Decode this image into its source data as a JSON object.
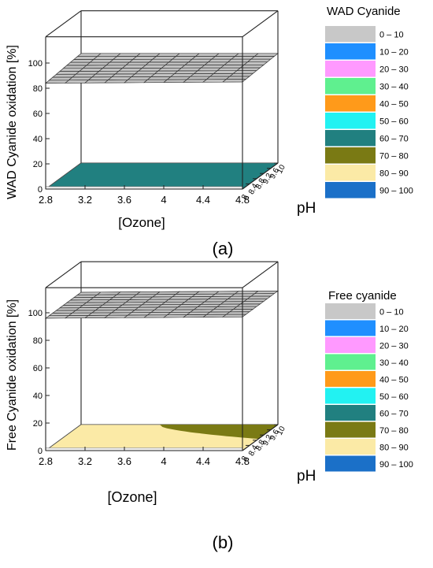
{
  "legend_colors": [
    "#c8c8c8",
    "#1f8fff",
    "#ff99ff",
    "#5ff08f",
    "#ff9a1a",
    "#22f2f2",
    "#218080",
    "#7a7a14",
    "#fbeaa6",
    "#1b70c8"
  ],
  "chart_data": [
    {
      "type": "3d-surface",
      "panel_label": "(a)",
      "zlabel": "WAD Cyanide oxidation [%]",
      "xlabel": "[Ozone]",
      "ylabel": "pH",
      "x_ticks": [
        "2.8",
        "3.2",
        "3.6",
        "4",
        "4.4",
        "4.8"
      ],
      "y_ticks": [
        "8",
        "8.4",
        "8.8",
        "9.2",
        "9.6",
        "10"
      ],
      "z_ticks": [
        "0",
        "20",
        "40",
        "60",
        "80",
        "100"
      ],
      "xlim": [
        2.8,
        4.8
      ],
      "ylim": [
        8,
        10
      ],
      "zlim": [
        0,
        100
      ],
      "legend_title": "WAD Cyanide",
      "legend_entries": [
        "0 – 10",
        "10 – 20",
        "20 – 30",
        "30 – 40",
        "40 – 50",
        "50 – 60",
        "60 – 70",
        "70 – 80",
        "80 – 90",
        "90 – 100"
      ],
      "surfaces": [
        {
          "kind": "response",
          "z_corners": {
            "x_min_y_min": 0,
            "x_max_y_min": 0,
            "x_min_y_max": 0,
            "x_max_y_max": 0
          },
          "band": "60 – 70"
        },
        {
          "kind": "reference-plane",
          "z_corners": {
            "x_min_y_min": 84,
            "x_max_y_min": 85,
            "x_min_y_max": 87,
            "x_max_y_max": 87
          }
        }
      ]
    },
    {
      "type": "3d-surface",
      "panel_label": "(b)",
      "zlabel": "Free Cyanide oxidation [%]",
      "xlabel": "[Ozone]",
      "ylabel": "pH",
      "x_ticks": [
        "2.8",
        "3.2",
        "3.6",
        "4",
        "4.4",
        "4.8"
      ],
      "y_ticks": [
        "8",
        "8.4",
        "8.8",
        "9.2",
        "9.6",
        "10"
      ],
      "z_ticks": [
        "0",
        "20",
        "40",
        "60",
        "80",
        "100"
      ],
      "xlim": [
        2.8,
        4.8
      ],
      "ylim": [
        8,
        10
      ],
      "zlim": [
        0,
        100
      ],
      "legend_title": "Free cyanide",
      "legend_entries": [
        "0 – 10",
        "10 – 20",
        "20 – 30",
        "30 – 40",
        "40 – 50",
        "50 – 60",
        "60 – 70",
        "70 – 80",
        "80 – 90",
        "90 – 100"
      ],
      "surfaces": [
        {
          "kind": "response",
          "z_corners": {
            "x_min_y_min": 0,
            "x_max_y_min": 0,
            "x_min_y_max": 0,
            "x_max_y_max": 0
          },
          "band": "80 – 90",
          "secondary_band": "70 – 80",
          "secondary_region_x": [
            3.6,
            4.8
          ]
        },
        {
          "kind": "reference-plane",
          "z_corners": {
            "x_min_y_min": 96,
            "x_max_y_min": 97,
            "x_min_y_max": 96,
            "x_max_y_max": 97
          }
        }
      ]
    }
  ]
}
